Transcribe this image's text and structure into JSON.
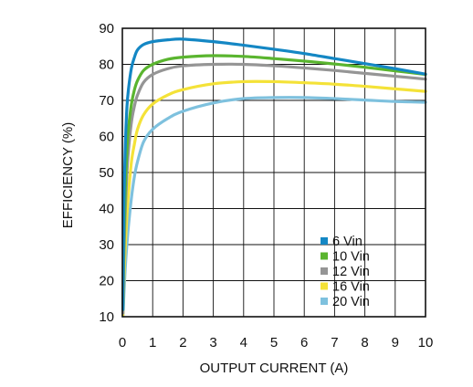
{
  "chart_data": {
    "type": "line",
    "title": "",
    "xlabel": "OUTPUT CURRENT (A)",
    "ylabel": "EFFICIENCY (%)",
    "xlim": [
      0,
      10
    ],
    "ylim": [
      10,
      90
    ],
    "xticks": [
      0,
      1,
      2,
      3,
      4,
      5,
      6,
      7,
      8,
      9,
      10
    ],
    "yticks": [
      10,
      20,
      30,
      40,
      50,
      60,
      70,
      80,
      90
    ],
    "grid": true,
    "legend_position": "bottom-right",
    "series": [
      {
        "name": "6 Vin",
        "color": "#1487c4",
        "x": [
          0.02,
          0.05,
          0.1,
          0.15,
          0.2,
          0.3,
          0.4,
          0.5,
          0.7,
          1.0,
          1.5,
          2.0,
          3.0,
          4.0,
          5.0,
          6.0,
          7.0,
          8.0,
          9.0,
          10.0
        ],
        "y": [
          12,
          40,
          58,
          68,
          73,
          79,
          82,
          84,
          85.5,
          86.3,
          86.8,
          87,
          86.3,
          85.3,
          84.2,
          83,
          81.6,
          80.2,
          78.8,
          77.3
        ]
      },
      {
        "name": "10 Vin",
        "color": "#5ab52f",
        "x": [
          0.02,
          0.05,
          0.1,
          0.15,
          0.2,
          0.3,
          0.4,
          0.5,
          0.7,
          1.0,
          1.5,
          2.0,
          3.0,
          4.0,
          5.0,
          6.0,
          7.0,
          8.0,
          9.0,
          10.0
        ],
        "y": [
          12,
          30,
          46,
          56,
          62,
          69,
          73,
          75.5,
          78.3,
          80,
          81.4,
          82,
          82.4,
          82.2,
          81.6,
          80.9,
          80.1,
          79.2,
          78.2,
          77.2
        ]
      },
      {
        "name": "12 Vin",
        "color": "#959595",
        "x": [
          0.02,
          0.05,
          0.1,
          0.15,
          0.2,
          0.3,
          0.4,
          0.5,
          0.7,
          1.0,
          1.5,
          2.0,
          3.0,
          4.0,
          5.0,
          6.0,
          7.0,
          8.0,
          9.0,
          10.0
        ],
        "y": [
          11,
          26,
          40,
          50,
          56,
          64,
          68.5,
          71.5,
          75,
          77.2,
          78.8,
          79.6,
          80,
          80,
          79.6,
          79,
          78.3,
          77.5,
          76.7,
          75.9
        ]
      },
      {
        "name": "16 Vin",
        "color": "#f4e238",
        "x": [
          0.02,
          0.05,
          0.1,
          0.15,
          0.2,
          0.3,
          0.4,
          0.5,
          0.7,
          1.0,
          1.5,
          2.0,
          3.0,
          4.0,
          5.0,
          6.0,
          7.0,
          8.0,
          9.0,
          10.0
        ],
        "y": [
          10.5,
          20,
          30,
          38,
          44,
          53,
          58,
          62,
          66,
          69,
          71.5,
          73,
          74.6,
          75.2,
          75.2,
          74.9,
          74.5,
          73.9,
          73.2,
          72.5
        ]
      },
      {
        "name": "20 Vin",
        "color": "#7ec1de",
        "x": [
          0.02,
          0.05,
          0.1,
          0.15,
          0.2,
          0.3,
          0.4,
          0.5,
          0.7,
          1.0,
          1.5,
          2.0,
          3.0,
          4.0,
          5.0,
          6.0,
          7.0,
          8.0,
          9.0,
          10.0
        ],
        "y": [
          10.2,
          16,
          24,
          30,
          35,
          43,
          49,
          53,
          58.5,
          62,
          65,
          67,
          69.3,
          70.5,
          70.8,
          70.8,
          70.5,
          70.1,
          69.7,
          69.5
        ]
      }
    ]
  }
}
